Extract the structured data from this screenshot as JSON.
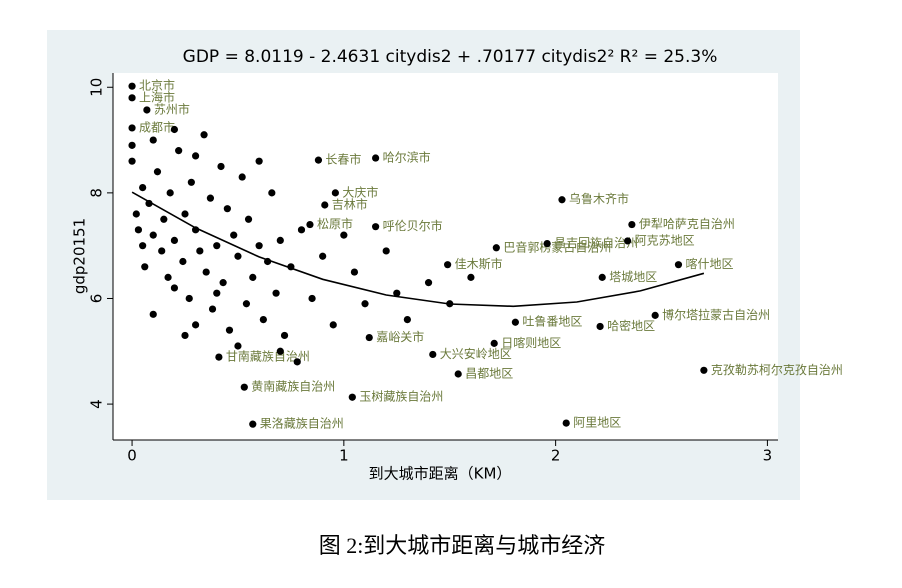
{
  "chart_data": {
    "type": "scatter",
    "title": "GDP = 8.0119 - 2.4631 citydis2 + .70177 citydis2² R² = 25.3%",
    "xlabel": "到大城市距离（KM）",
    "ylabel": "gdp20151",
    "xlim": [
      -0.09,
      3.05
    ],
    "ylim": [
      3.32,
      10.27
    ],
    "xticks": [
      0,
      1,
      2,
      3
    ],
    "yticks": [
      4,
      6,
      8,
      10
    ],
    "point_color": "#000000",
    "label_color": "#6b7a3c",
    "series": [
      {
        "x": [
          0,
          0,
          0.07,
          0,
          0.88,
          1.15,
          0.96,
          0.91,
          0.84,
          1.15,
          1.49,
          1.72,
          1.96,
          2.03,
          2.36,
          2.34,
          2.58,
          2.22,
          2.47,
          2.21,
          1.81,
          1.12,
          1.71,
          1.42,
          1.54,
          0.41,
          0.53,
          1.04,
          0.57,
          2.7,
          2.05
        ],
        "values": [
          10.02,
          9.8,
          9.57,
          9.23,
          8.62,
          8.66,
          8.0,
          7.77,
          7.4,
          7.36,
          6.64,
          6.96,
          7.04,
          7.87,
          7.4,
          7.09,
          6.64,
          6.4,
          5.68,
          5.47,
          5.55,
          5.26,
          5.15,
          4.94,
          4.57,
          4.89,
          4.32,
          4.13,
          3.62,
          4.64,
          3.64
        ],
        "labels": [
          "北京市",
          "上海市",
          "苏州市",
          "成都市",
          "长春市",
          "哈尔滨市",
          "大庆市",
          "吉林市",
          "松原市",
          "呼伦贝尔市",
          "佳木斯市",
          "巴音郭楞蒙古自治州",
          "昌吉回族自治州",
          "乌鲁木齐市",
          "伊犁哈萨克自治州",
          "阿克苏地区",
          "喀什地区",
          "塔城地区",
          "博尔塔拉蒙古自治州",
          "哈密地区",
          "吐鲁番地区",
          "嘉峪关市",
          "日喀则地区",
          "大兴安岭地区",
          "昌都地区",
          "甘南藏族自治州",
          "黄南藏族自治州",
          "玉树藏族自治州",
          "果洛藏族自治州",
          "克孜勒苏柯尔克孜自治州",
          "阿里地区"
        ]
      },
      {
        "x": [
          0,
          0,
          0.02,
          0.03,
          0.05,
          0.05,
          0.06,
          0.08,
          0.1,
          0.1,
          0.12,
          0.14,
          0.15,
          0.17,
          0.18,
          0.2,
          0.2,
          0.22,
          0.24,
          0.25,
          0.27,
          0.28,
          0.3,
          0.3,
          0.32,
          0.34,
          0.35,
          0.37,
          0.38,
          0.4,
          0.42,
          0.43,
          0.45,
          0.46,
          0.48,
          0.5,
          0.52,
          0.54,
          0.55,
          0.57,
          0.6,
          0.62,
          0.64,
          0.66,
          0.68,
          0.7,
          0.72,
          0.75,
          0.78,
          0.8,
          0.85,
          0.9,
          0.95,
          1.0,
          1.05,
          1.1,
          1.2,
          1.25,
          1.3,
          1.4,
          1.5,
          1.6,
          0.1,
          0.2,
          0.3,
          0.4,
          0.5,
          0.6,
          0.7,
          0.25
        ],
        "values": [
          8.9,
          8.6,
          7.6,
          7.3,
          8.1,
          7.0,
          6.6,
          7.8,
          7.2,
          5.7,
          8.4,
          6.9,
          7.5,
          6.4,
          8.0,
          7.1,
          6.2,
          8.8,
          6.7,
          7.6,
          6.0,
          8.2,
          7.3,
          5.5,
          6.9,
          9.1,
          6.5,
          7.9,
          5.8,
          7.0,
          8.5,
          6.3,
          7.7,
          5.4,
          7.2,
          6.8,
          8.3,
          5.9,
          7.5,
          6.4,
          7.0,
          5.6,
          6.7,
          8.0,
          6.1,
          7.1,
          5.3,
          6.6,
          4.8,
          7.3,
          6.0,
          6.8,
          5.5,
          7.2,
          6.5,
          5.9,
          6.9,
          6.1,
          5.6,
          6.3,
          5.9,
          6.4,
          9.0,
          9.2,
          8.7,
          6.1,
          5.1,
          8.6,
          5.0,
          5.3
        ]
      }
    ],
    "fit": {
      "color": "#000000",
      "x": [
        0,
        0.3,
        0.6,
        0.9,
        1.2,
        1.5,
        1.8,
        2.1,
        2.4,
        2.7
      ],
      "values": [
        8.0119,
        7.3361,
        6.7867,
        6.3635,
        6.0667,
        5.8962,
        5.8521,
        5.9342,
        6.1427,
        6.4774
      ]
    }
  },
  "caption": "图 2:到大城市距离与城市经济"
}
